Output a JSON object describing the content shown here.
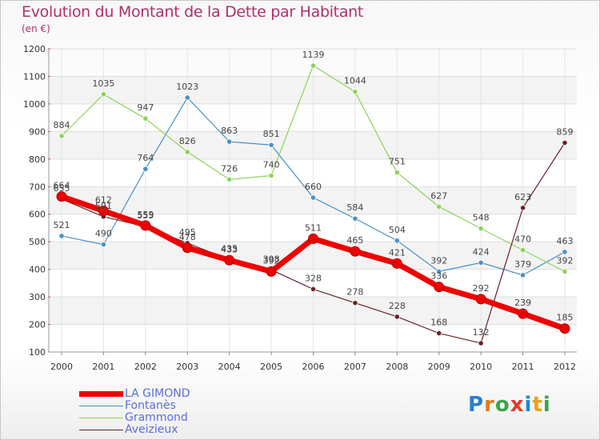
{
  "header": {
    "title": "Evolution du Montant de la Dette par Habitant",
    "subtitle": "(en €)"
  },
  "brand": {
    "letters": [
      "P",
      "r",
      "o",
      "x",
      "i",
      "t",
      "i"
    ],
    "colors": [
      "#2a7fd0",
      "#e37a1c",
      "#3aa54a",
      "#e33a2a",
      "#1c8ad6",
      "#e8a21c",
      "#3aa54a"
    ]
  },
  "chart_data": {
    "type": "line",
    "x": [
      "2000",
      "2001",
      "2002",
      "2003",
      "2004",
      "2005",
      "2006",
      "2007",
      "2008",
      "2009",
      "2010",
      "2011",
      "2012"
    ],
    "ylim": [
      100,
      1200
    ],
    "yticks": [
      "100",
      "200",
      "300",
      "400",
      "500",
      "600",
      "700",
      "800",
      "900",
      "1000",
      "1100",
      "1200"
    ],
    "grid": true,
    "legend_position": "bottom-left",
    "series": [
      {
        "name": "Fontanès",
        "color": "#4a90c8",
        "values": [
          521,
          490,
          764,
          1023,
          863,
          851,
          660,
          584,
          504,
          392,
          424,
          379,
          463
        ]
      },
      {
        "name": "Grammond",
        "color": "#8cd25a",
        "values": [
          884,
          1035,
          947,
          826,
          726,
          740,
          1139,
          1044,
          751,
          627,
          548,
          470,
          392
        ]
      },
      {
        "name": "Aveizieux",
        "color": "#6b2228",
        "values": [
          655,
          591,
          555,
          495,
          435,
          398,
          328,
          278,
          228,
          168,
          132,
          623,
          859
        ]
      },
      {
        "name": "LA GIMOND",
        "color": "#ee0000",
        "values": [
          664,
          612,
          559,
          478,
          433,
          392,
          511,
          465,
          421,
          336,
          292,
          239,
          185
        ]
      }
    ]
  }
}
